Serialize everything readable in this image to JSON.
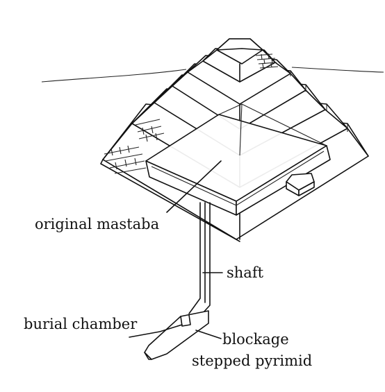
{
  "diagram": {
    "labels": {
      "original_mastaba": "original mastaba",
      "shaft": "shaft",
      "burial_chamber": "burial chamber",
      "blockage": "blockage",
      "stepped_pyramid": "stepped pyrimid"
    }
  }
}
